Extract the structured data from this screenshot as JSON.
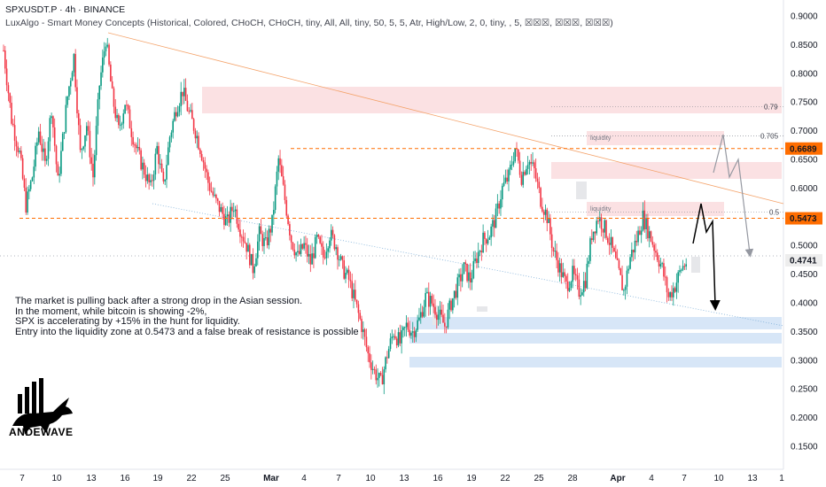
{
  "header": {
    "title": "SPXUSDT.P · 4h · BINANCE",
    "indicator": "LuxAlgo - Smart Money Concepts (Historical, Colored, CHoCH, CHoCH, tiny, All, All, tiny, 50, 5, 5, Atr, High/Low, 2, 0, tiny, , 5, ☒☒☒, ☒☒☒, ☒☒☒)"
  },
  "note": {
    "lines": [
      "The market is pulling back after a strong drop in the Asian session.",
      "In the moment, while bitcoin is showing -2%,",
      "SPX is accelerating by +15% in the hunt for liquidity.",
      "Entry into the liquidity zone at 0.5473 and a false break of resistance is possible"
    ]
  },
  "logo": {
    "text": "ANDEWAVE",
    "icon": "bull-chart-logo-icon"
  },
  "colors": {
    "up": "#089981",
    "down": "#f23645",
    "accent": "#ff6d00",
    "last_price_bg": "#ededed",
    "demand_zone": "#d7e6f7",
    "supply_zone": "#fbe1e3"
  },
  "chart_data": {
    "type": "candlestick",
    "symbol": "SPXUSDT.P",
    "interval": "4h",
    "exchange": "BINANCE",
    "ylim": [
      0.1,
      0.93
    ],
    "y_ticks": [
      0.9,
      0.85,
      0.8,
      0.75,
      0.7,
      0.65,
      0.6,
      0.55,
      0.5,
      0.45,
      0.4,
      0.35,
      0.3,
      0.25,
      0.2,
      0.15
    ],
    "x_ticks": [
      "7",
      "10",
      "13",
      "16",
      "19",
      "22",
      "25",
      "Mar",
      "4",
      "7",
      "10",
      "13",
      "16",
      "19",
      "22",
      "25",
      "28",
      "Apr",
      "4",
      "7",
      "10",
      "13",
      "1"
    ],
    "price_labels": [
      {
        "value": 0.6689,
        "text": "0.6689",
        "color": "#ff6d00"
      },
      {
        "value": 0.5473,
        "text": "0.5473",
        "color": "#ff6d00"
      },
      {
        "value": 0.4741,
        "text": "0.4741",
        "color": "#ededed"
      }
    ],
    "fib_levels": [
      {
        "label": "0.79",
        "value": 0.742
      },
      {
        "label": "0.705",
        "value": 0.691
      },
      {
        "label": "0.5",
        "value": 0.558
      }
    ],
    "zone_labels": [
      "liquidity",
      "liquidity"
    ],
    "key_levels": [
      0.6689,
      0.5473
    ],
    "path_points": [
      [
        0,
        0.84
      ],
      [
        5,
        0.72
      ],
      [
        10,
        0.66
      ],
      [
        14,
        0.57
      ],
      [
        18,
        0.62
      ],
      [
        22,
        0.7
      ],
      [
        26,
        0.64
      ],
      [
        30,
        0.74
      ],
      [
        34,
        0.61
      ],
      [
        40,
        0.76
      ],
      [
        44,
        0.83
      ],
      [
        48,
        0.66
      ],
      [
        52,
        0.71
      ],
      [
        56,
        0.62
      ],
      [
        60,
        0.78
      ],
      [
        64,
        0.86
      ],
      [
        68,
        0.76
      ],
      [
        72,
        0.7
      ],
      [
        76,
        0.75
      ],
      [
        80,
        0.7
      ],
      [
        84,
        0.66
      ],
      [
        88,
        0.63
      ],
      [
        92,
        0.6
      ],
      [
        96,
        0.67
      ],
      [
        100,
        0.6
      ],
      [
        104,
        0.69
      ],
      [
        108,
        0.74
      ],
      [
        112,
        0.77
      ],
      [
        116,
        0.73
      ],
      [
        120,
        0.7
      ],
      [
        124,
        0.66
      ],
      [
        128,
        0.61
      ],
      [
        132,
        0.58
      ],
      [
        136,
        0.56
      ],
      [
        140,
        0.54
      ],
      [
        144,
        0.57
      ],
      [
        148,
        0.53
      ],
      [
        152,
        0.5
      ],
      [
        156,
        0.46
      ],
      [
        160,
        0.52
      ],
      [
        164,
        0.5
      ],
      [
        168,
        0.54
      ],
      [
        172,
        0.65
      ],
      [
        176,
        0.58
      ],
      [
        180,
        0.51
      ],
      [
        184,
        0.48
      ],
      [
        188,
        0.5
      ],
      [
        192,
        0.47
      ],
      [
        196,
        0.51
      ],
      [
        200,
        0.48
      ],
      [
        204,
        0.52
      ],
      [
        208,
        0.5
      ],
      [
        212,
        0.46
      ],
      [
        216,
        0.44
      ],
      [
        220,
        0.4
      ],
      [
        224,
        0.36
      ],
      [
        228,
        0.31
      ],
      [
        232,
        0.28
      ],
      [
        236,
        0.26
      ],
      [
        240,
        0.31
      ],
      [
        244,
        0.35
      ],
      [
        248,
        0.33
      ],
      [
        252,
        0.36
      ],
      [
        256,
        0.35
      ],
      [
        260,
        0.37
      ],
      [
        264,
        0.41
      ],
      [
        268,
        0.4
      ],
      [
        272,
        0.38
      ],
      [
        276,
        0.36
      ],
      [
        280,
        0.4
      ],
      [
        284,
        0.43
      ],
      [
        288,
        0.46
      ],
      [
        292,
        0.44
      ],
      [
        296,
        0.48
      ],
      [
        300,
        0.51
      ],
      [
        304,
        0.52
      ],
      [
        308,
        0.55
      ],
      [
        312,
        0.6
      ],
      [
        316,
        0.62
      ],
      [
        320,
        0.67
      ],
      [
        324,
        0.62
      ],
      [
        328,
        0.65
      ],
      [
        332,
        0.63
      ],
      [
        336,
        0.58
      ],
      [
        340,
        0.55
      ],
      [
        344,
        0.49
      ],
      [
        348,
        0.46
      ],
      [
        352,
        0.43
      ],
      [
        356,
        0.45
      ],
      [
        360,
        0.42
      ],
      [
        364,
        0.44
      ],
      [
        368,
        0.52
      ],
      [
        372,
        0.55
      ],
      [
        376,
        0.53
      ],
      [
        380,
        0.5
      ],
      [
        384,
        0.46
      ],
      [
        388,
        0.42
      ],
      [
        392,
        0.48
      ],
      [
        396,
        0.51
      ],
      [
        400,
        0.55
      ],
      [
        404,
        0.52
      ],
      [
        408,
        0.49
      ],
      [
        412,
        0.46
      ],
      [
        416,
        0.41
      ],
      [
        420,
        0.43
      ],
      [
        424,
        0.46
      ],
      [
        428,
        0.4741
      ]
    ]
  }
}
